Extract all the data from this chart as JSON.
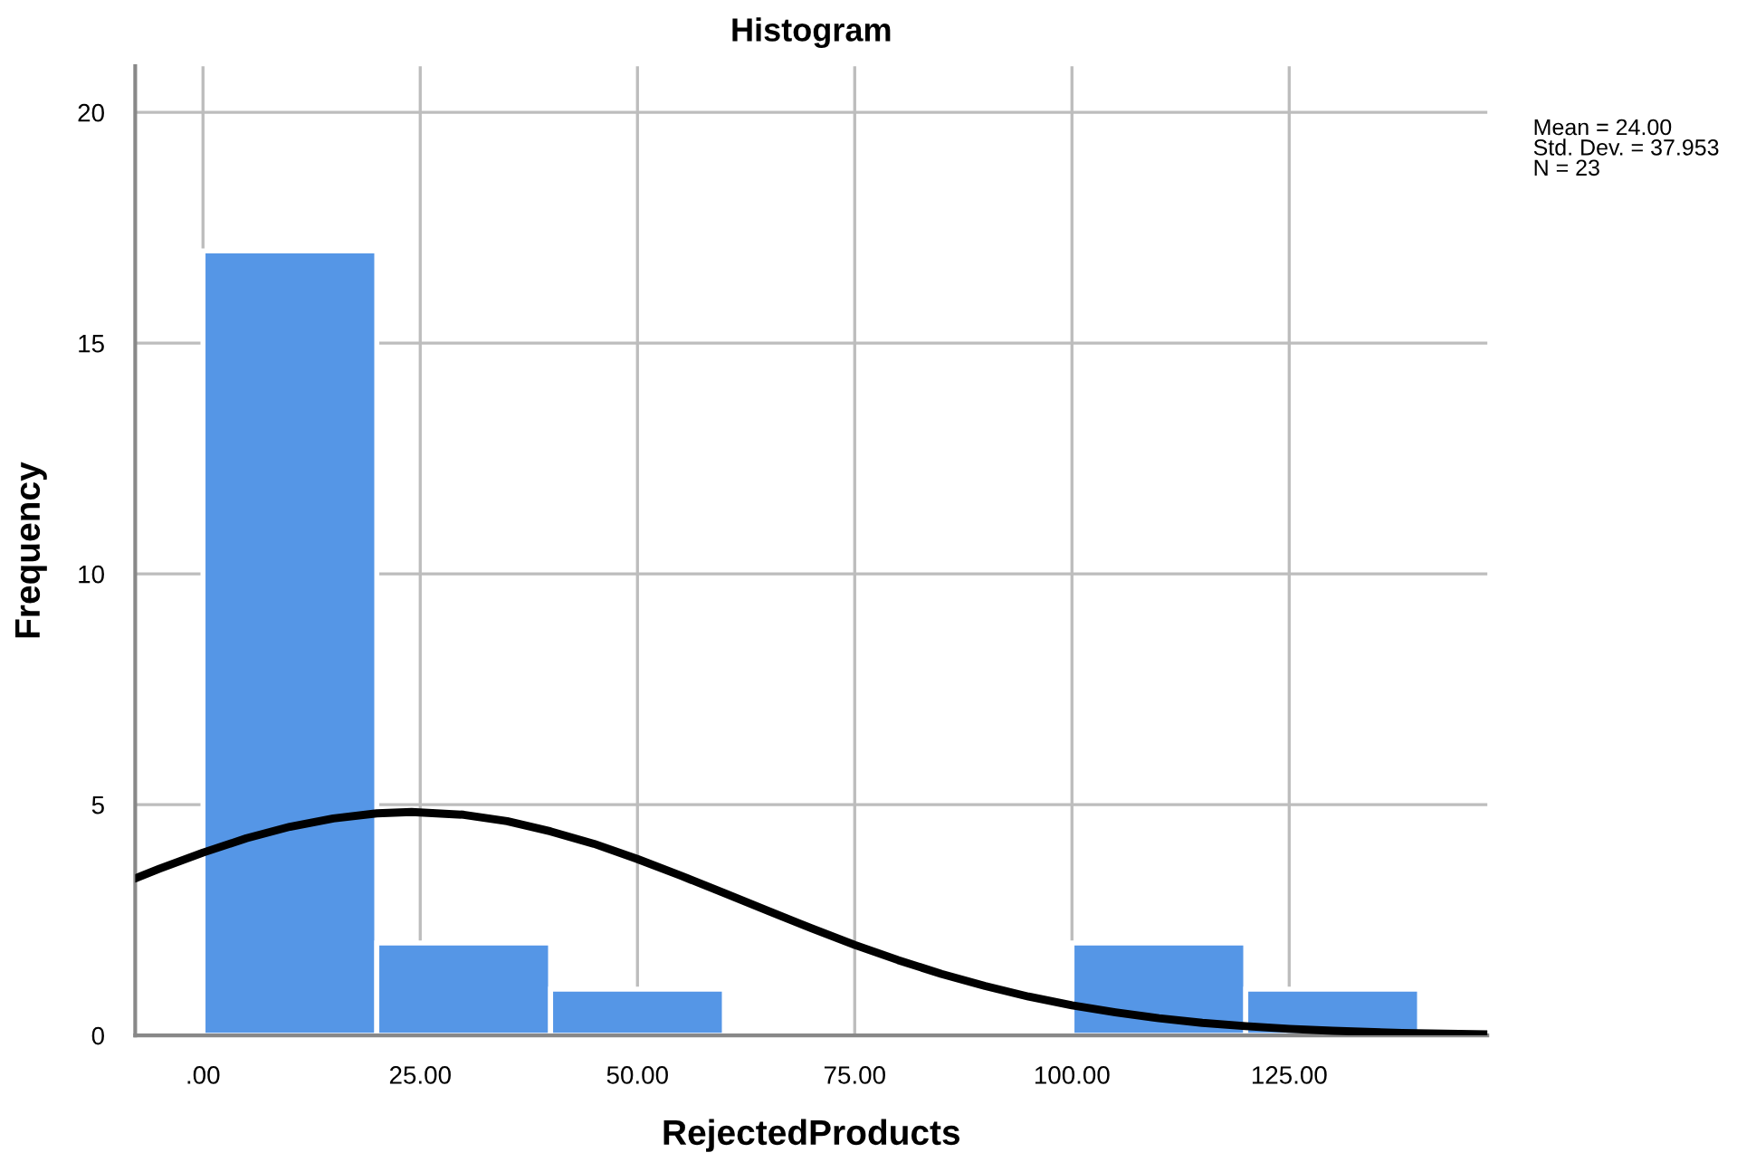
{
  "chart_data": {
    "type": "histogram",
    "title": "Histogram",
    "xlabel": "RejectedProducts",
    "ylabel": "Frequency",
    "bins": [
      0,
      20,
      40,
      60,
      80,
      100,
      120,
      140
    ],
    "values": [
      17,
      2,
      1,
      0,
      0,
      2,
      1
    ],
    "color": "#5596e6",
    "series": [
      {
        "type": "line",
        "color": "#000000",
        "x": [
          -7.8,
          -5,
          0,
          5,
          10,
          15,
          20,
          24,
          30,
          35,
          40,
          45,
          50,
          55,
          60,
          65,
          70,
          75,
          80,
          85,
          90,
          95,
          100,
          105,
          110,
          115,
          120,
          125,
          130,
          138,
          147.8
        ],
        "values": [
          3.4,
          3.61,
          3.96,
          4.27,
          4.52,
          4.7,
          4.81,
          4.84,
          4.78,
          4.64,
          4.42,
          4.15,
          3.82,
          3.46,
          3.08,
          2.7,
          2.32,
          1.96,
          1.63,
          1.33,
          1.07,
          0.84,
          0.65,
          0.5,
          0.37,
          0.27,
          0.2,
          0.14,
          0.1,
          0.05,
          0.02
        ]
      }
    ],
    "xlim": [
      -7.8,
      147.8
    ],
    "ylim": [
      0,
      21
    ],
    "xticks": [
      {
        "value": 0,
        "label": ".00"
      },
      {
        "value": 25,
        "label": "25.00"
      },
      {
        "value": 50,
        "label": "50.00"
      },
      {
        "value": 75,
        "label": "75.00"
      },
      {
        "value": 100,
        "label": "100.00"
      },
      {
        "value": 125,
        "label": "125.00"
      }
    ],
    "yticks": [
      0,
      5,
      10,
      15,
      20
    ],
    "grid": true,
    "annotations": [
      "Mean = 24.00",
      "Std. Dev. = 37.953",
      "N = 23"
    ]
  }
}
